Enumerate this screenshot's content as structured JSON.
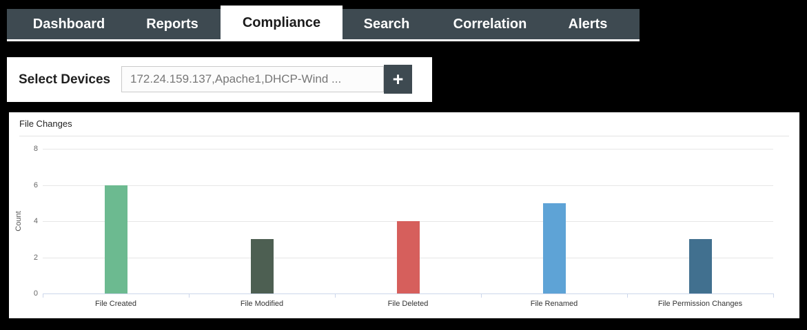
{
  "nav": {
    "tabs": [
      {
        "label": "Dashboard",
        "active": false
      },
      {
        "label": "Reports",
        "active": false
      },
      {
        "label": "Compliance",
        "active": true
      },
      {
        "label": "Search",
        "active": false
      },
      {
        "label": "Correlation",
        "active": false
      },
      {
        "label": "Alerts",
        "active": false
      }
    ]
  },
  "device_selector": {
    "label": "Select Devices",
    "value": "172.24.159.137,Apache1,DHCP-Wind ...",
    "add_button_label": "+"
  },
  "chart": {
    "title": "File Changes"
  },
  "chart_data": {
    "type": "bar",
    "title": "File Changes",
    "categories": [
      "File Created",
      "File Modified",
      "File Deleted",
      "File Renamed",
      "File Permission Changes"
    ],
    "values": [
      6,
      3,
      4,
      5,
      3
    ],
    "bar_colors": [
      "#6cba90",
      "#4d5f52",
      "#d65f5c",
      "#5ea3d6",
      "#41708f"
    ],
    "xlabel": "",
    "ylabel": "Count",
    "ylim": [
      0,
      8
    ],
    "yticks": [
      0,
      2,
      4,
      6,
      8
    ],
    "grid": true,
    "legend": false
  },
  "colors": {
    "page_bg": "#000000",
    "navbar_bg": "#3e4a51",
    "active_tab_bg": "#ffffff",
    "panel_bg": "#ffffff",
    "add_button_bg": "#3e4a51",
    "gridline": "#e6e6e6",
    "axis_line": "#ccd6eb"
  }
}
